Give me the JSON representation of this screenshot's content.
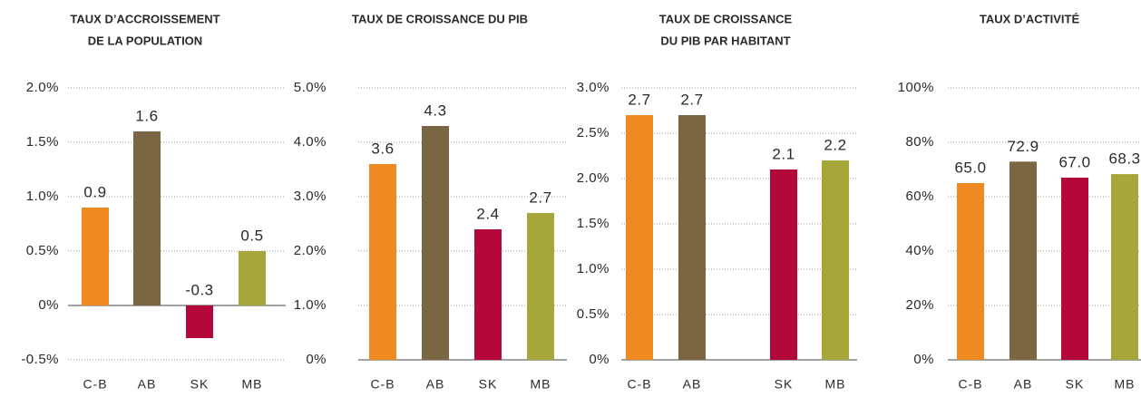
{
  "chart_data": [
    {
      "type": "bar",
      "title": [
        "TAUX D’ACCROISSEMENT",
        "DE LA POPULATION"
      ],
      "categories": [
        "C-B",
        "AB",
        "SK",
        "MB"
      ],
      "values": [
        0.9,
        1.6,
        -0.3,
        0.5
      ],
      "colors": [
        "#ef8a22",
        "#7a6642",
        "#b5083a",
        "#a6a73a"
      ],
      "ylim": [
        -0.5,
        2.0
      ],
      "yticks": [
        {
          "value": -0.5,
          "label": "-0.5%"
        },
        {
          "value": 0,
          "label": "0%"
        },
        {
          "value": 0.5,
          "label": "0.5%"
        },
        {
          "value": 1.0,
          "label": "1.0%"
        },
        {
          "value": 1.5,
          "label": "1.5%"
        },
        {
          "value": 2.0,
          "label": "2.0%"
        }
      ],
      "grid": true
    },
    {
      "type": "bar",
      "title": [
        "TAUX DE CROISSANCE DU PIB"
      ],
      "categories": [
        "C-B",
        "AB",
        "SK",
        "MB"
      ],
      "values": [
        3.6,
        4.3,
        2.4,
        2.7
      ],
      "colors": [
        "#ef8a22",
        "#7a6642",
        "#b5083a",
        "#a6a73a"
      ],
      "ylim": [
        0,
        5.0
      ],
      "yticks": [
        {
          "value": 0,
          "label": "0%"
        },
        {
          "value": 1.0,
          "label": "1.0%"
        },
        {
          "value": 2.0,
          "label": "2.0%"
        },
        {
          "value": 3.0,
          "label": "3.0%"
        },
        {
          "value": 4.0,
          "label": "4.0%"
        },
        {
          "value": 5.0,
          "label": "5.0%"
        }
      ],
      "grid": true
    },
    {
      "type": "bar",
      "title": [
        "TAUX DE CROISSANCE",
        "DU PIB PAR HABITANT"
      ],
      "categories": [
        "C-B",
        "AB",
        "SK",
        "MB"
      ],
      "values": [
        2.7,
        2.7,
        2.1,
        2.2
      ],
      "colors": [
        "#ef8a22",
        "#7a6642",
        "#b5083a",
        "#a6a73a"
      ],
      "ylim": [
        0,
        3.0
      ],
      "yticks": [
        {
          "value": 0,
          "label": "0%"
        },
        {
          "value": 0.5,
          "label": "0.5%"
        },
        {
          "value": 1.0,
          "label": "1.0%"
        },
        {
          "value": 1.5,
          "label": "1.5%"
        },
        {
          "value": 2.0,
          "label": "2.0%"
        },
        {
          "value": 2.5,
          "label": "2.5%"
        },
        {
          "value": 3.0,
          "label": "3.0%"
        }
      ],
      "grid": true
    },
    {
      "type": "bar",
      "title": [
        "TAUX D’ACTIVITÉ"
      ],
      "categories": [
        "C-B",
        "AB",
        "SK",
        "MB"
      ],
      "values": [
        65.0,
        72.9,
        67.0,
        68.3
      ],
      "value_labels": [
        "65.0",
        "72.9",
        "67.0",
        "68.3"
      ],
      "colors": [
        "#ef8a22",
        "#7a6642",
        "#b5083a",
        "#a6a73a"
      ],
      "ylim": [
        0,
        100
      ],
      "yticks": [
        {
          "value": 0,
          "label": "0%"
        },
        {
          "value": 20,
          "label": "20%"
        },
        {
          "value": 40,
          "label": "40%"
        },
        {
          "value": 60,
          "label": "60%"
        },
        {
          "value": 80,
          "label": "80%"
        },
        {
          "value": 100,
          "label": "100%"
        }
      ],
      "grid": true
    }
  ]
}
